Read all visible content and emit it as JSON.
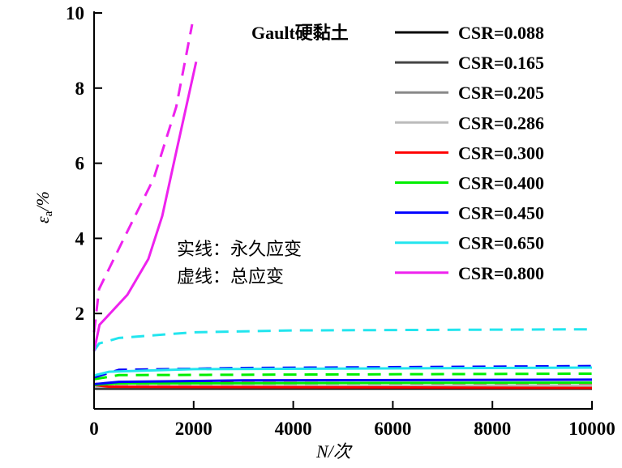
{
  "chart_data": {
    "type": "line",
    "title": "",
    "xlabel": "N/次",
    "ylabel_symbol": "ε",
    "ylabel_sub": "a",
    "ylabel_unit": "/%",
    "xlim": [
      0,
      10000
    ],
    "ylim": [
      -0.5,
      10
    ],
    "xticks": [
      0,
      2000,
      4000,
      6000,
      8000,
      10000
    ],
    "yticks": [
      2,
      4,
      6,
      8,
      10
    ],
    "legend_title": "Gault硬黏土",
    "legend_position": "top-right",
    "annotations": [
      "实线：永久应变",
      "虚线：总应变"
    ],
    "series": [
      {
        "name": "CSR=0.088",
        "color": "#000000",
        "permanent": [
          [
            0,
            0.0
          ],
          [
            10000,
            0.0
          ]
        ],
        "total": [
          [
            0,
            0.02
          ],
          [
            10000,
            0.02
          ]
        ]
      },
      {
        "name": "CSR=0.165",
        "color": "#444444",
        "permanent": [
          [
            0,
            0.02
          ],
          [
            10000,
            0.03
          ]
        ],
        "total": [
          [
            0,
            0.05
          ],
          [
            10000,
            0.07
          ]
        ]
      },
      {
        "name": "CSR=0.205",
        "color": "#888888",
        "permanent": [
          [
            0,
            0.05
          ],
          [
            10000,
            0.05
          ]
        ],
        "total": [
          [
            0,
            0.08
          ],
          [
            10000,
            0.1
          ]
        ]
      },
      {
        "name": "CSR=0.286",
        "color": "#bbbbbb",
        "permanent": [
          [
            0,
            0.06
          ],
          [
            10000,
            0.08
          ]
        ],
        "total": [
          [
            0,
            0.1
          ],
          [
            10000,
            0.12
          ]
        ]
      },
      {
        "name": "CSR=0.300",
        "color": "#ff0000",
        "permanent": [
          [
            0,
            0.1
          ],
          [
            300,
            0.05
          ],
          [
            10000,
            0.02
          ]
        ],
        "total": [
          [
            0,
            0.12
          ],
          [
            500,
            0.15
          ],
          [
            10000,
            0.15
          ]
        ]
      },
      {
        "name": "CSR=0.400",
        "color": "#00ee00",
        "permanent": [
          [
            0,
            0.1
          ],
          [
            500,
            0.14
          ],
          [
            10000,
            0.16
          ]
        ],
        "total": [
          [
            0,
            0.25
          ],
          [
            500,
            0.36
          ],
          [
            10000,
            0.4
          ]
        ]
      },
      {
        "name": "CSR=0.450",
        "color": "#0000ff",
        "permanent": [
          [
            0,
            0.12
          ],
          [
            500,
            0.18
          ],
          [
            3000,
            0.22
          ],
          [
            10000,
            0.24
          ]
        ],
        "total": [
          [
            0,
            0.3
          ],
          [
            500,
            0.5
          ],
          [
            3000,
            0.55
          ],
          [
            10000,
            0.6
          ]
        ]
      },
      {
        "name": "CSR=0.650",
        "color": "#22e5ee",
        "permanent": [
          [
            0,
            0.35
          ],
          [
            300,
            0.45
          ],
          [
            2000,
            0.52
          ],
          [
            10000,
            0.56
          ]
        ],
        "total": [
          [
            0,
            1.0
          ],
          [
            100,
            1.2
          ],
          [
            500,
            1.35
          ],
          [
            2000,
            1.5
          ],
          [
            4000,
            1.55
          ],
          [
            10000,
            1.58
          ]
        ]
      },
      {
        "name": "CSR=0.800",
        "color": "#ee22ee",
        "permanent": [
          [
            0,
            1.0
          ],
          [
            110,
            1.7
          ],
          [
            670,
            2.5
          ],
          [
            1090,
            3.45
          ],
          [
            1370,
            4.6
          ],
          [
            1650,
            6.3
          ],
          [
            2050,
            8.7
          ]
        ],
        "total": [
          [
            0,
            1.5
          ],
          [
            100,
            2.65
          ],
          [
            600,
            4.0
          ],
          [
            1200,
            5.6
          ],
          [
            1650,
            7.5
          ],
          [
            1970,
            9.7
          ]
        ]
      }
    ]
  }
}
